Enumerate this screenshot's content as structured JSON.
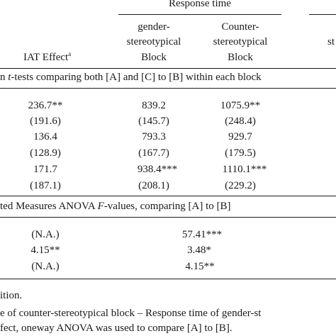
{
  "header": {
    "response_time": "Response time",
    "gender_col": [
      "gender-",
      "stereotypical",
      "Block"
    ],
    "counter_col": [
      "Counter-",
      "stereotypical",
      "Block"
    ],
    "iat_effect": "IAT Effect",
    "iat_effect_sup": "a",
    "far_right_fragment": "st"
  },
  "section1": {
    "prefix": "n ",
    "italic": "t",
    "rest": "-tests comparing both [A] and [C] to [B] within each block"
  },
  "rows1": [
    {
      "iat": "236.7**",
      "gender": "839.2",
      "counter": "1075.9**"
    },
    {
      "iat": "(191.6)",
      "gender": "(145.7)",
      "counter": "(248.4)"
    },
    {
      "iat": "136.4",
      "gender": "793.3",
      "counter": "929.7"
    },
    {
      "iat": "(128.9)",
      "gender": "(167.7)",
      "counter": "(179.5)"
    },
    {
      "iat": "171.7",
      "gender": "938.4***",
      "counter": "1110.1***"
    },
    {
      "iat": "(187.1)",
      "gender": "(208.1)",
      "counter": "(229.2)"
    }
  ],
  "section2": {
    "prefix": "ted Measures ANOVA ",
    "italic": "F",
    "rest": "-values, comparing [A] to [B]"
  },
  "rows2": [
    {
      "iat": "(N.A.)",
      "center": "57.41***"
    },
    {
      "iat": "4.15**",
      "center": "3.48*"
    },
    {
      "iat": "(N.A.)",
      "center": "4.15**"
    }
  ],
  "notes": [
    "ition.",
    "e of counter-stereotypical block – Response time of gender-st",
    "fect, oneway ANOVA was used to compare [A] to [B]."
  ]
}
